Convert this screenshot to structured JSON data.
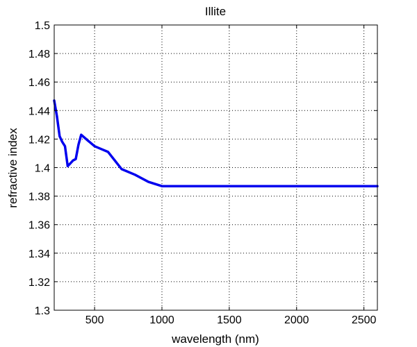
{
  "chart_data": {
    "type": "line",
    "title": "Illite",
    "xlabel": "wavelength (nm)",
    "ylabel": "refractive index",
    "xlim": [
      200,
      2600
    ],
    "ylim": [
      1.3,
      1.5
    ],
    "grid": true,
    "x_ticks": [
      500,
      1000,
      1500,
      2000,
      2500
    ],
    "x_tick_labels": [
      "500",
      "1000",
      "1500",
      "2000",
      "2500"
    ],
    "y_ticks": [
      1.3,
      1.32,
      1.34,
      1.36,
      1.38,
      1.4,
      1.42,
      1.44,
      1.46,
      1.48,
      1.5
    ],
    "y_tick_labels": [
      "1.3",
      "1.32",
      "1.34",
      "1.36",
      "1.38",
      "1.4",
      "1.42",
      "1.44",
      "1.46",
      "1.48",
      "1.5"
    ],
    "series": [
      {
        "color": "#0000ee",
        "x": [
          200,
          220,
          240,
          260,
          280,
          300,
          320,
          340,
          360,
          380,
          400,
          450,
          500,
          550,
          600,
          700,
          800,
          900,
          1000,
          1500,
          2000,
          2500,
          2600
        ],
        "y": [
          1.447,
          1.436,
          1.422,
          1.418,
          1.415,
          1.401,
          1.403,
          1.405,
          1.406,
          1.416,
          1.423,
          1.419,
          1.415,
          1.413,
          1.411,
          1.399,
          1.395,
          1.39,
          1.387,
          1.387,
          1.387,
          1.387,
          1.387
        ]
      }
    ]
  }
}
